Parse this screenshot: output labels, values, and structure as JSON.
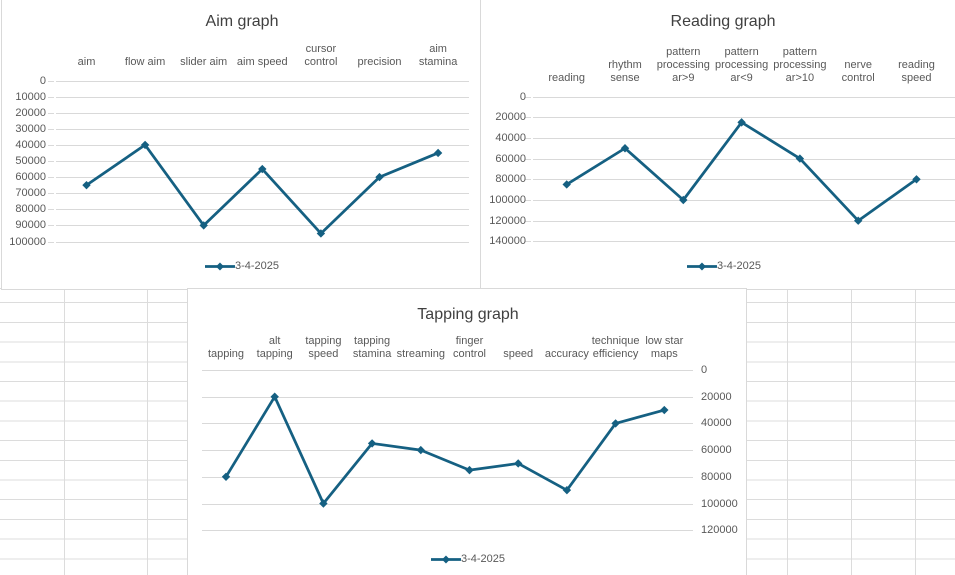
{
  "app": {
    "description": "Spreadsheet with three line charts of osu! skill metrics"
  },
  "colors": {
    "line": "#156082",
    "title": "#404040",
    "axis_labels": "#595959",
    "chart_gridline": "#d9d9d9",
    "chart_border": "#d9d9d9",
    "sheet_gridline": "#dcdcdc",
    "background": "#ffffff"
  },
  "chart_data": [
    {
      "type": "line",
      "title": "Aim graph",
      "categories": [
        "aim",
        "flow aim",
        "slider aim",
        "aim speed",
        "cursor\ncontrol",
        "precision",
        "aim\nstamina"
      ],
      "series": [
        {
          "name": "3-4-2025",
          "values": [
            65000,
            40000,
            90000,
            55000,
            95000,
            60000,
            45000
          ]
        }
      ],
      "y_axis": {
        "ticks": [
          "0",
          "10000",
          "20000",
          "30000",
          "40000",
          "50000",
          "60000",
          "70000",
          "80000",
          "90000",
          "100000"
        ],
        "min": 0,
        "max": 100000,
        "inverted": true,
        "side": "left"
      },
      "x_axis": {
        "position": "top"
      },
      "grid": true,
      "legend": {
        "position": "bottom",
        "label": "3-4-2025"
      },
      "line_color": "#156082"
    },
    {
      "type": "line",
      "title": "Reading graph",
      "categories": [
        "reading",
        "rhythm\nsense",
        "pattern\nprocessing\nar>9",
        "pattern\nprocessing\nar<9",
        "pattern\nprocessing\nar>10",
        "nerve\ncontrol",
        "reading\nspeed"
      ],
      "series": [
        {
          "name": "3-4-2025",
          "values": [
            85000,
            50000,
            100000,
            25000,
            60000,
            120000,
            80000
          ]
        }
      ],
      "y_axis": {
        "ticks": [
          "0",
          "20000",
          "40000",
          "60000",
          "80000",
          "100000",
          "120000",
          "140000"
        ],
        "min": 0,
        "max": 140000,
        "inverted": true,
        "side": "left"
      },
      "x_axis": {
        "position": "top"
      },
      "grid": true,
      "legend": {
        "position": "bottom",
        "label": "3-4-2025"
      },
      "line_color": "#156082"
    },
    {
      "type": "line",
      "title": "Tapping graph",
      "categories": [
        "tapping",
        "alt\ntapping",
        "tapping\nspeed",
        "tapping\nstamina",
        "streaming",
        "finger\ncontrol",
        "speed",
        "accuracy",
        "technique\nefficiency",
        "low star\nmaps"
      ],
      "series": [
        {
          "name": "3-4-2025",
          "values": [
            80000,
            20000,
            100000,
            55000,
            60000,
            75000,
            70000,
            90000,
            40000,
            30000
          ]
        }
      ],
      "y_axis": {
        "ticks": [
          "0",
          "20000",
          "40000",
          "60000",
          "80000",
          "100000",
          "120000"
        ],
        "min": 0,
        "max": 120000,
        "inverted": true,
        "side": "right"
      },
      "x_axis": {
        "position": "top"
      },
      "grid": true,
      "legend": {
        "position": "bottom",
        "label": "3-4-2025"
      },
      "line_color": "#156082"
    }
  ]
}
